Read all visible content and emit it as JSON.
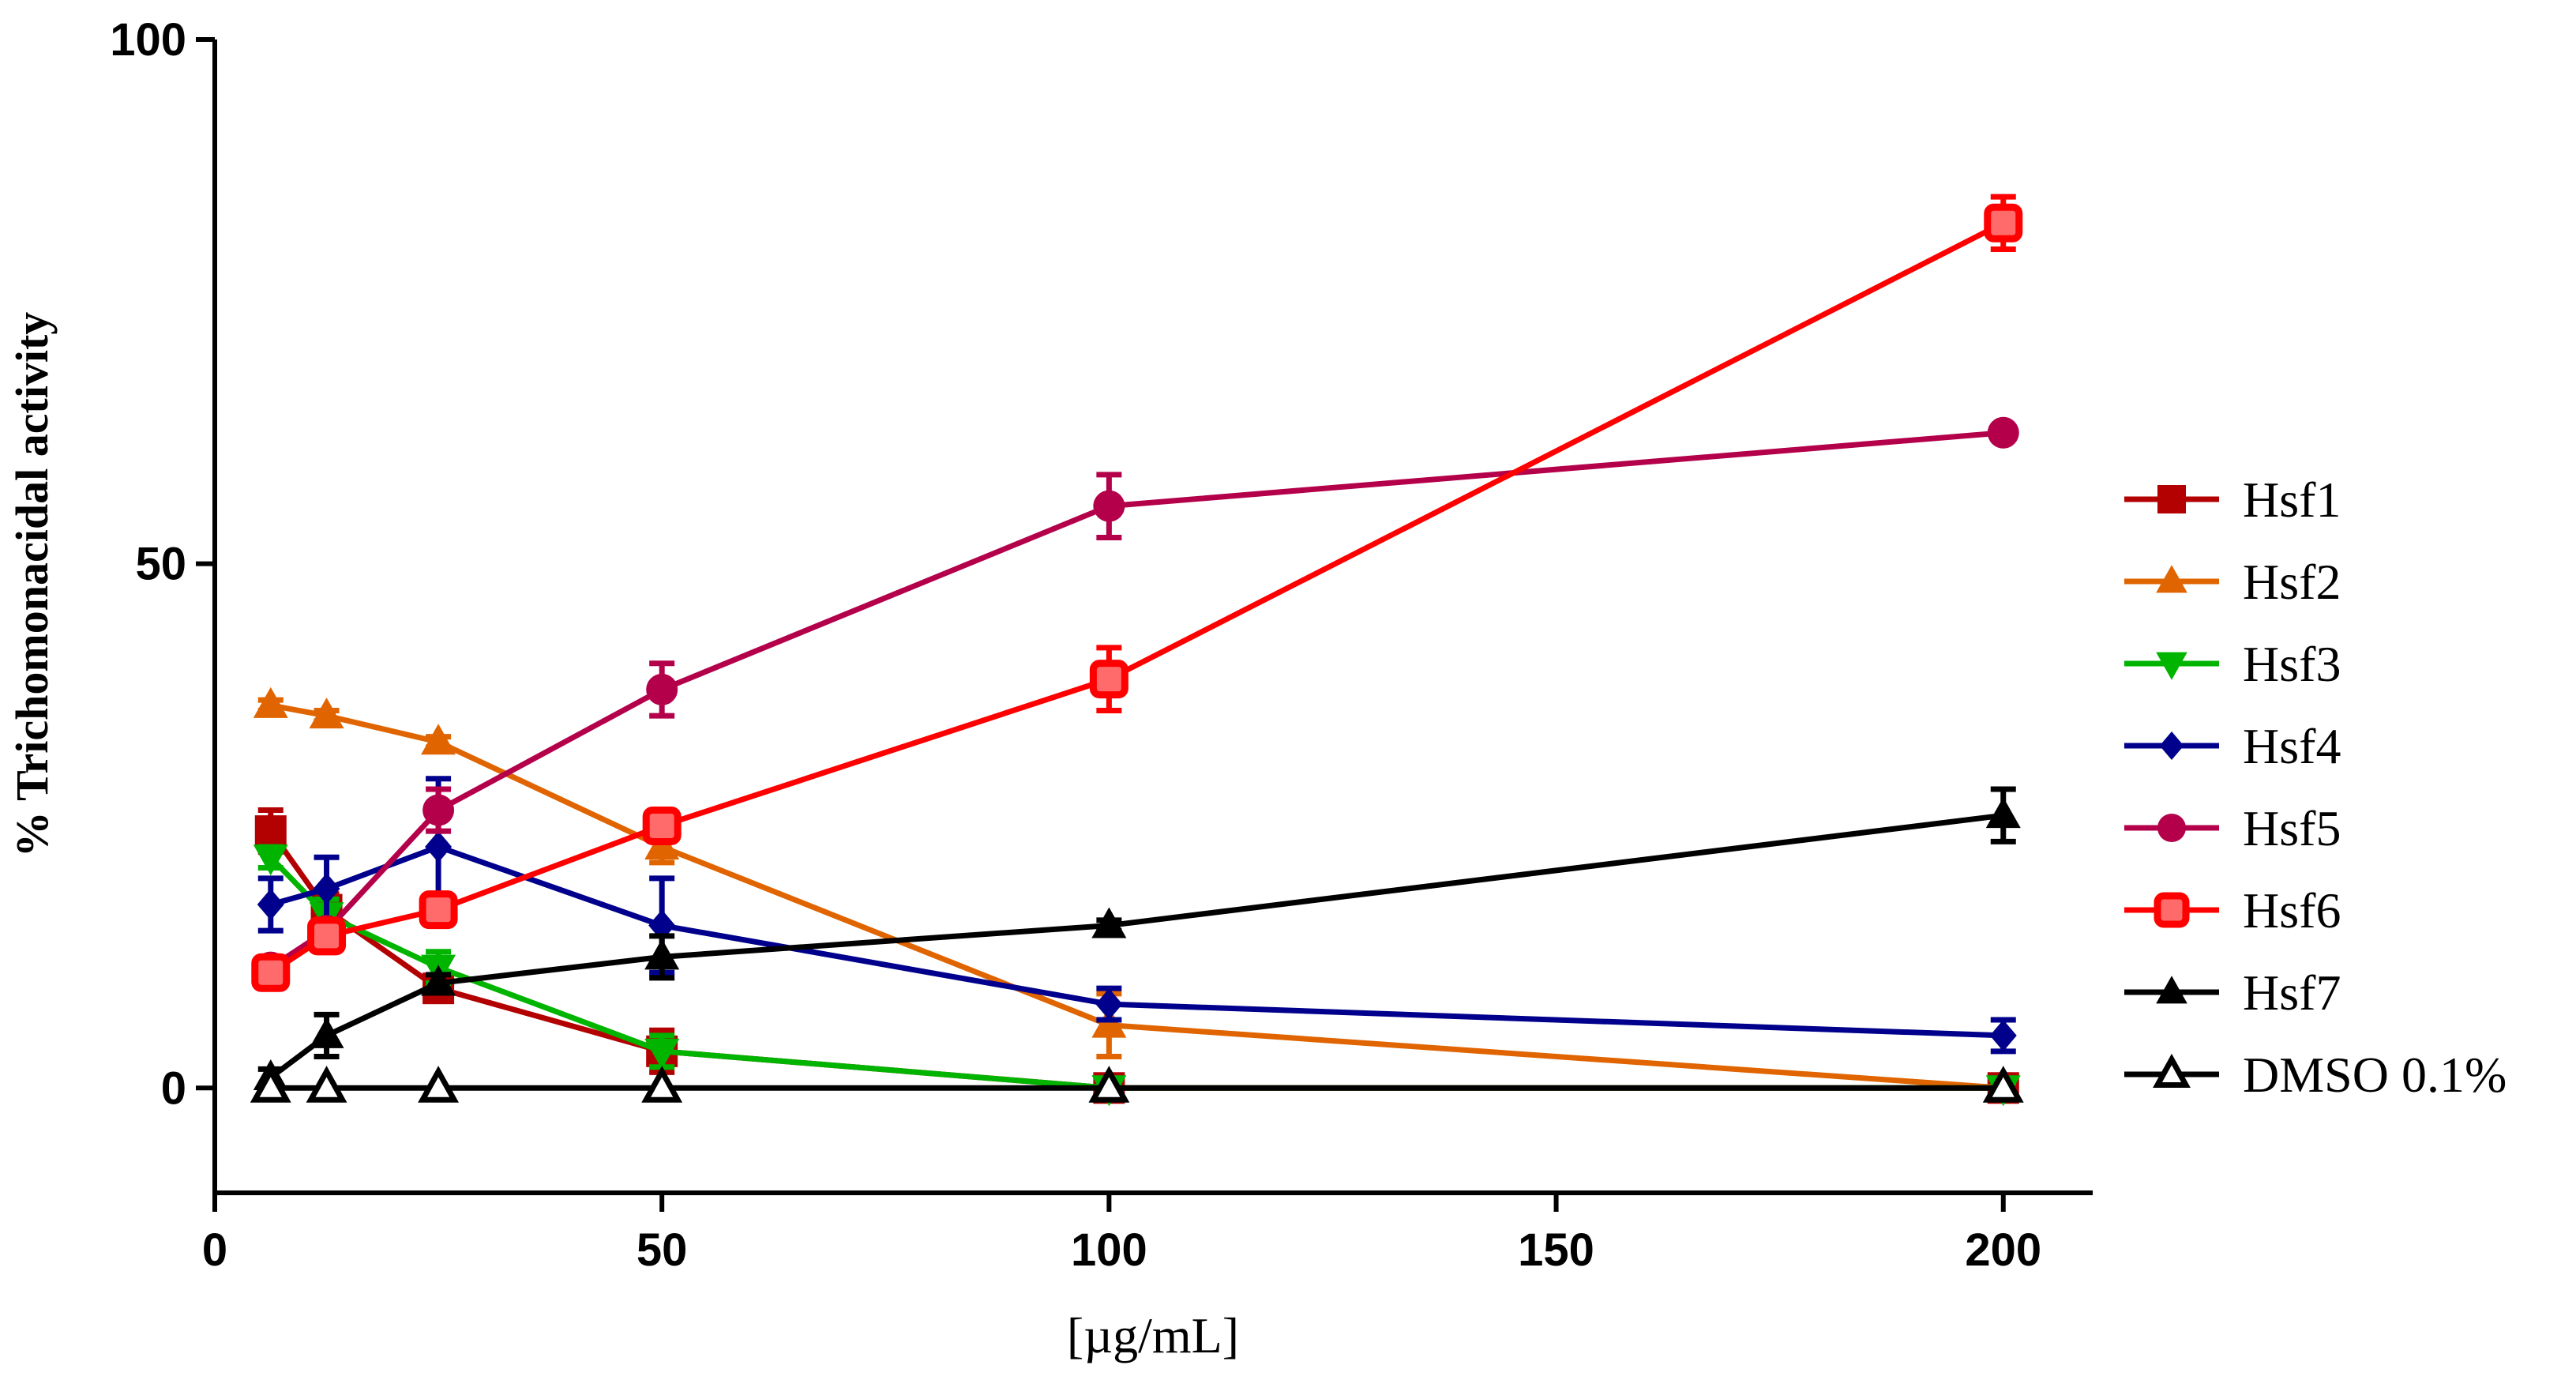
{
  "chart_data": {
    "type": "line",
    "title": "",
    "xlabel": "[µg/mL]",
    "ylabel": "% Trichomonacidal activity",
    "xlim": [
      0,
      210
    ],
    "ylim": [
      -10,
      100
    ],
    "xticks": [
      0,
      50,
      100,
      150,
      200
    ],
    "xtick_labels": [
      "0",
      "50",
      "100",
      "150",
      "200"
    ],
    "yticks": [
      0,
      50,
      100
    ],
    "ytick_labels": [
      "0",
      "50",
      "100"
    ],
    "x": [
      6.25,
      12.5,
      25,
      50,
      100,
      200
    ],
    "legend_position": "right",
    "series": [
      {
        "name": "Hsf1",
        "color": "#b30000",
        "marker": "square",
        "values": [
          24.5,
          17.0,
          9.5,
          3.5,
          0.0,
          0.0
        ],
        "errors": [
          2.0,
          1.5,
          0.8,
          2.0,
          0.5,
          0.5
        ]
      },
      {
        "name": "Hsf2",
        "color": "#e06400",
        "marker": "triangle-up",
        "values": [
          36.5,
          35.5,
          33.0,
          23.0,
          6.0,
          0.0
        ],
        "errors": [
          0.5,
          0.5,
          0.5,
          1.5,
          3.0,
          0.5
        ]
      },
      {
        "name": "Hsf3",
        "color": "#00b400",
        "marker": "triangle-down",
        "values": [
          22.0,
          16.5,
          11.5,
          3.5,
          0.0,
          0.0
        ],
        "errors": [
          1.0,
          1.5,
          1.5,
          1.5,
          0.5,
          0.5
        ]
      },
      {
        "name": "Hsf4",
        "color": "#00008c",
        "marker": "diamond",
        "values": [
          17.5,
          19.0,
          23.0,
          15.5,
          8.0,
          5.0
        ],
        "errors": [
          2.5,
          3.0,
          6.5,
          4.5,
          1.5,
          1.5
        ]
      },
      {
        "name": "Hsf5",
        "color": "#b4004a",
        "marker": "circle",
        "values": [
          11.5,
          15.0,
          26.5,
          38.0,
          55.5,
          62.5
        ],
        "errors": [
          0.8,
          1.0,
          2.0,
          2.5,
          3.0,
          0.5
        ]
      },
      {
        "name": "Hsf6",
        "color": "#ff0000",
        "marker": "square-open",
        "values": [
          11.0,
          14.5,
          17.0,
          25.0,
          39.0,
          82.5
        ],
        "errors": [
          1.0,
          1.0,
          1.0,
          1.5,
          3.0,
          2.5
        ]
      },
      {
        "name": "Hsf7",
        "color": "#000000",
        "marker": "triangle-up",
        "values": [
          1.0,
          5.0,
          10.0,
          12.5,
          15.5,
          26.0
        ],
        "errors": [
          0.8,
          2.0,
          0.8,
          2.0,
          0.5,
          2.5
        ]
      },
      {
        "name": "DMSO 0.1%",
        "color": "#000000",
        "marker": "triangle-open",
        "values": [
          0.0,
          0.0,
          0.0,
          0.0,
          0.0,
          0.0
        ],
        "errors": [
          0.3,
          0.3,
          0.3,
          0.3,
          0.3,
          0.3
        ]
      }
    ]
  }
}
